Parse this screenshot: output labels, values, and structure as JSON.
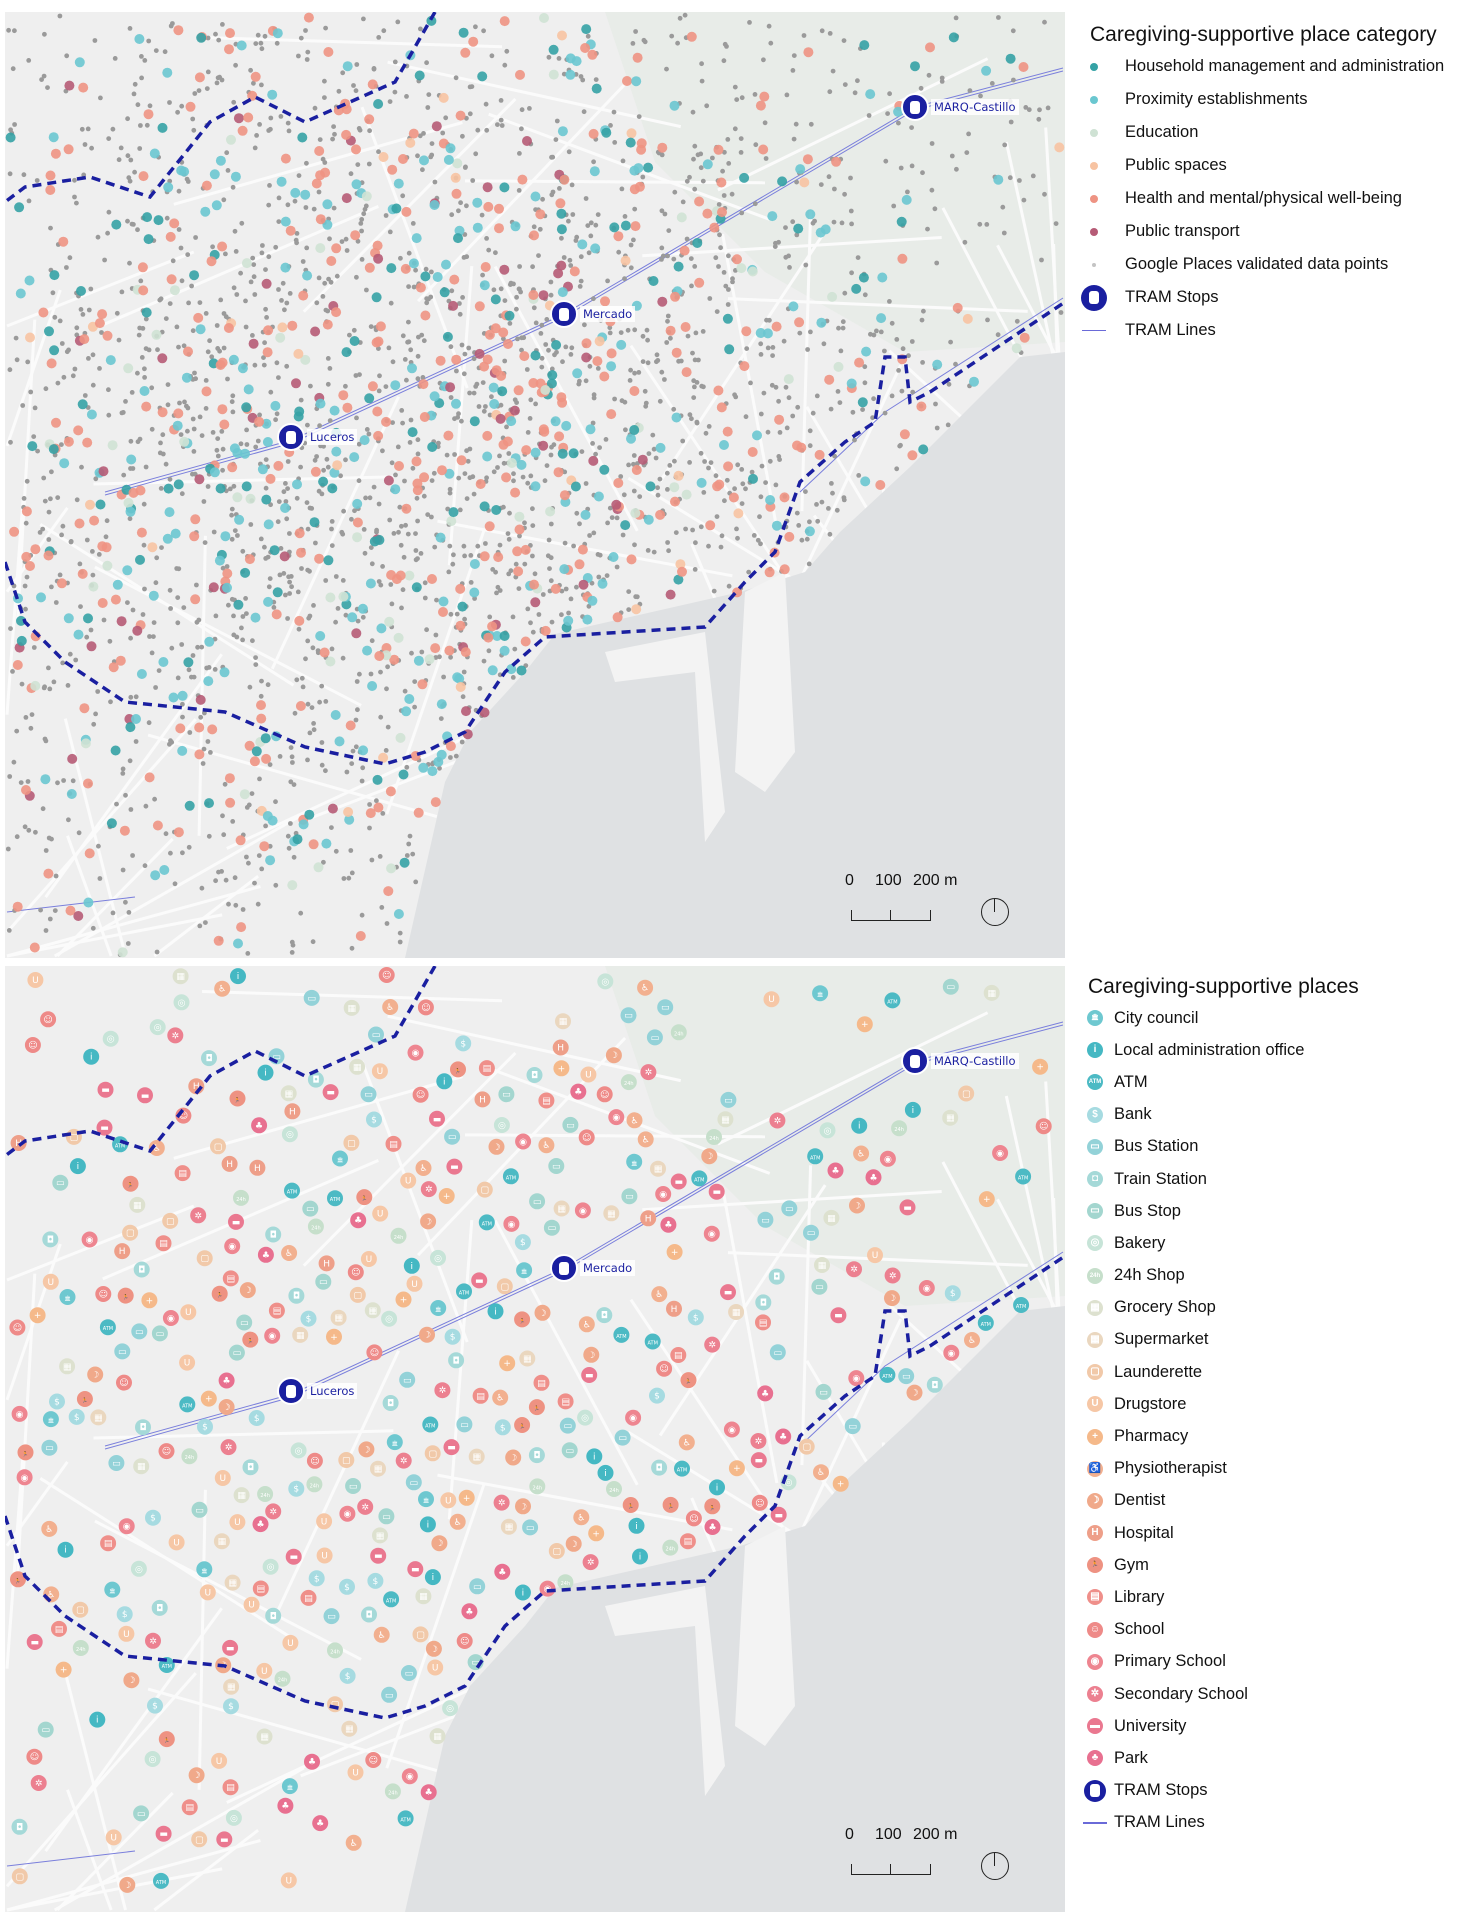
{
  "top_map": {
    "legend_title": "Caregiving-supportive place category",
    "categories": [
      {
        "label": "Household management and administration",
        "color": "#35a2a5"
      },
      {
        "label": "Proximity establishments",
        "color": "#6ac7d0"
      },
      {
        "label": "Education",
        "color": "#cfe2d4"
      },
      {
        "label": "Public spaces",
        "color": "#f7c3a2"
      },
      {
        "label": "Health and mental/physical well-being",
        "color": "#ee9383"
      },
      {
        "label": "Public transport",
        "color": "#b65b76"
      },
      {
        "label": "Google Places validated data points",
        "color": "#c4c4c4"
      }
    ],
    "tram_stops_label": "TRAM Stops",
    "tram_lines_label": "TRAM Lines"
  },
  "bottom_map": {
    "legend_title": "Caregiving-supportive places",
    "places": [
      {
        "label": "City council",
        "color": "#6ec8d0",
        "glyph": "🏛"
      },
      {
        "label": "Local administration office",
        "color": "#45b8c3",
        "glyph": "i"
      },
      {
        "label": "ATM",
        "color": "#4cbac4",
        "glyph": "ATM"
      },
      {
        "label": "Bank",
        "color": "#a6dbe1",
        "glyph": "$"
      },
      {
        "label": "Bus Station",
        "color": "#93d2d8",
        "glyph": "▭"
      },
      {
        "label": "Train Station",
        "color": "#a5d9d8",
        "glyph": "◘"
      },
      {
        "label": "Bus Stop",
        "color": "#a3d6cf",
        "glyph": "▭"
      },
      {
        "label": "Bakery",
        "color": "#c7e4d8",
        "glyph": "◎"
      },
      {
        "label": "24h Shop",
        "color": "#c6dfcb",
        "glyph": "24h"
      },
      {
        "label": "Grocery Shop",
        "color": "#dde1cf",
        "glyph": "▦"
      },
      {
        "label": "Supermarket",
        "color": "#ead7bf",
        "glyph": "▦"
      },
      {
        "label": "Launderette",
        "color": "#f1c9a9",
        "glyph": "▢"
      },
      {
        "label": "Drugstore",
        "color": "#f6c7a6",
        "glyph": "U"
      },
      {
        "label": "Pharmacy",
        "color": "#f5b98a",
        "glyph": "+"
      },
      {
        "label": "Physiotherapist",
        "color": "#f2b08f",
        "glyph": "♿"
      },
      {
        "label": "Dentist",
        "color": "#f0a98a",
        "glyph": "☽"
      },
      {
        "label": "Hospital",
        "color": "#ee9f89",
        "glyph": "H"
      },
      {
        "label": "Gym",
        "color": "#ee9282",
        "glyph": "🏃"
      },
      {
        "label": "Library",
        "color": "#ef8f8a",
        "glyph": "▤"
      },
      {
        "label": "School",
        "color": "#ee8a88",
        "glyph": "☺"
      },
      {
        "label": "Primary School",
        "color": "#ee8590",
        "glyph": "◉"
      },
      {
        "label": "Secondary School",
        "color": "#ec8090",
        "glyph": "✲"
      },
      {
        "label": "University",
        "color": "#ea7890",
        "glyph": "▬"
      },
      {
        "label": "Park",
        "color": "#e87090",
        "glyph": "♣"
      }
    ],
    "tram_stops_label": "TRAM Stops",
    "tram_lines_label": "TRAM Lines"
  },
  "stations": [
    "Luceros",
    "Mercado",
    "MARQ-Castillo"
  ],
  "scale_bar": {
    "ticks": [
      "0",
      "100",
      "200 m"
    ]
  },
  "colors": {
    "tram": "#1a1fa0",
    "tram_line": "#5a5ad8",
    "boundary": "#1a1fa0",
    "sea": "#dfe1e3",
    "land": "#efefef"
  }
}
